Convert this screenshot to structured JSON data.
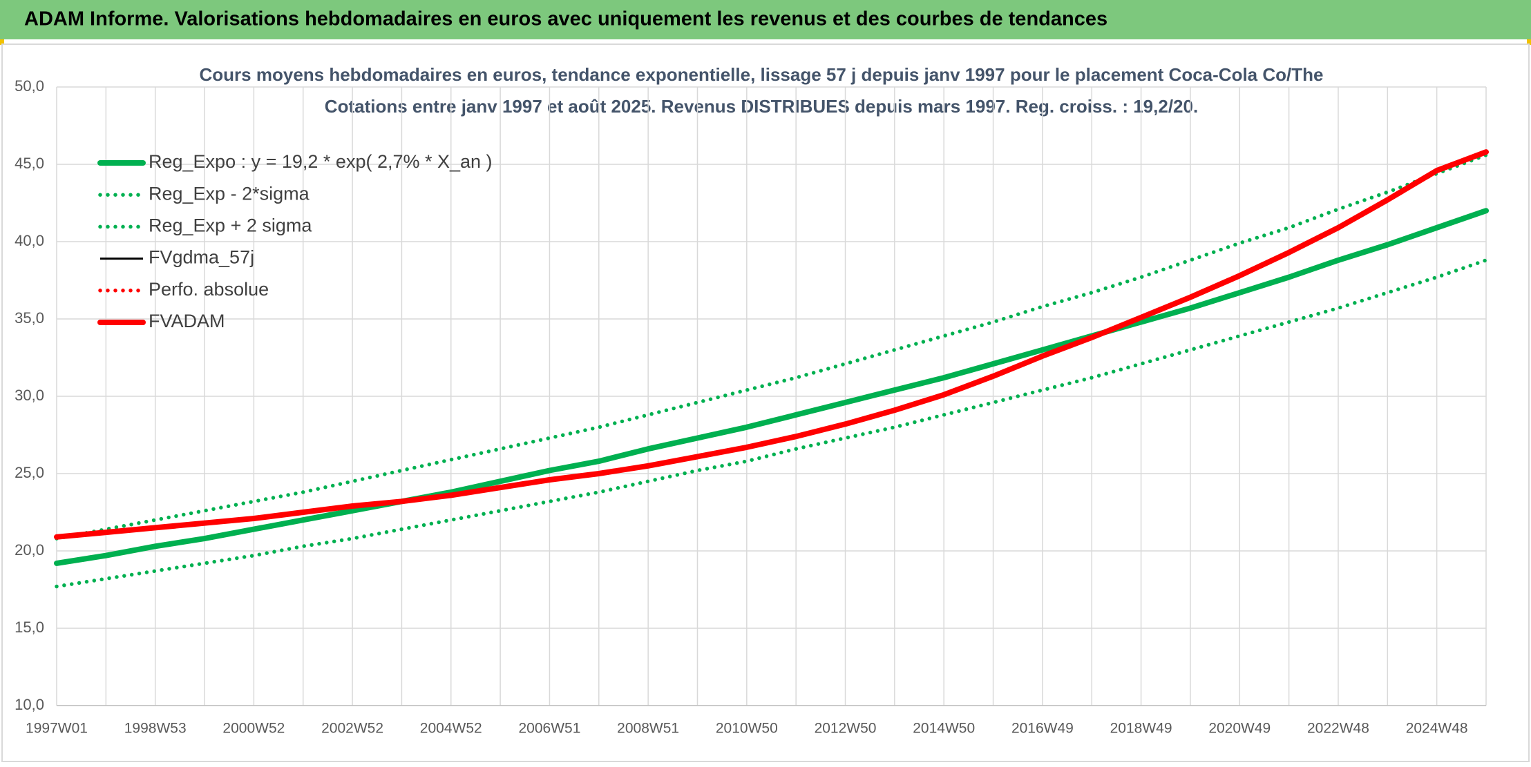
{
  "header": {
    "title": "ADAM Informe. Valorisations hebdomadaires en euros avec uniquement les revenus et des courbes de tendances"
  },
  "chart_data": {
    "type": "line",
    "title": "Cours moyens hebdomadaires en euros, tendance exponentielle, lissage 57 j depuis janv 1997 pour le placement Coca-Cola Co/The",
    "subtitle": "Cotations entre janv 1997 et août 2025. Revenus DISTRIBUES depuis mars 1997. Reg. croiss. : 19,2/20.",
    "categories": [
      "1997W01",
      null,
      "1998W53",
      null,
      "2000W52",
      null,
      "2002W52",
      null,
      "2004W52",
      null,
      "2006W51",
      null,
      "2008W51",
      null,
      "2010W50",
      null,
      "2012W50",
      null,
      "2014W50",
      null,
      "2016W49",
      null,
      "2018W49",
      null,
      "2020W49",
      null,
      "2022W48",
      null,
      "2024W48",
      null
    ],
    "ylim": [
      10,
      50
    ],
    "yticks": [
      {
        "value": 10,
        "label": "10,0"
      },
      {
        "value": 15,
        "label": "15,0"
      },
      {
        "value": 20,
        "label": "20,0"
      },
      {
        "value": 25,
        "label": "25,0"
      },
      {
        "value": 30,
        "label": "30,0"
      },
      {
        "value": 35,
        "label": "35,0"
      },
      {
        "value": 40,
        "label": "40,0"
      },
      {
        "value": 45,
        "label": "45,0"
      },
      {
        "value": 50,
        "label": "50,0"
      }
    ],
    "grid": true,
    "legend": "top-left",
    "series": [
      {
        "name": "Reg_Expo : y = 19,2 * exp( 2,7% *  X_an )",
        "color": "#00b050",
        "line_style": "thick",
        "values": [
          19.2,
          19.7,
          20.3,
          20.8,
          21.4,
          22.0,
          22.6,
          23.2,
          23.8,
          24.5,
          25.2,
          25.8,
          26.6,
          27.3,
          28.0,
          28.8,
          29.6,
          30.4,
          31.2,
          32.1,
          33.0,
          33.9,
          34.8,
          35.7,
          36.7,
          37.7,
          38.8,
          39.8,
          40.9,
          42.0
        ]
      },
      {
        "name": "Reg_Exp - 2*sigma",
        "color": "#00b050",
        "line_style": "dotted",
        "values": [
          17.7,
          18.2,
          18.7,
          19.2,
          19.7,
          20.3,
          20.8,
          21.4,
          22.0,
          22.6,
          23.2,
          23.8,
          24.5,
          25.2,
          25.8,
          26.6,
          27.3,
          28.0,
          28.8,
          29.6,
          30.4,
          31.2,
          32.1,
          33.0,
          33.9,
          34.8,
          35.7,
          36.7,
          37.7,
          38.8
        ]
      },
      {
        "name": "Reg_Exp + 2 sigma",
        "color": "#00b050",
        "line_style": "dotted",
        "values": [
          20.8,
          21.4,
          22.0,
          22.6,
          23.2,
          23.8,
          24.5,
          25.2,
          25.9,
          26.6,
          27.3,
          28.0,
          28.8,
          29.6,
          30.4,
          31.2,
          32.1,
          33.0,
          33.9,
          34.8,
          35.8,
          36.7,
          37.7,
          38.8,
          39.9,
          40.9,
          42.1,
          43.2,
          44.4,
          45.6
        ]
      },
      {
        "name": "FVgdma_57j",
        "color": "#000000",
        "line_style": "thin",
        "values": [
          20.9,
          21.2,
          21.5,
          21.8,
          22.1,
          22.5,
          22.9,
          23.2,
          23.6,
          24.1,
          24.6,
          25.0,
          25.5,
          26.1,
          26.7,
          27.4,
          28.2,
          29.1,
          30.1,
          31.3,
          32.6,
          33.8,
          35.1,
          36.4,
          37.8,
          39.3,
          40.9,
          42.7,
          44.6,
          45.8
        ]
      },
      {
        "name": "Perfo. absolue",
        "color": "#ff0000",
        "line_style": "dotted",
        "values": [
          20.9,
          21.2,
          21.5,
          21.8,
          22.1,
          22.5,
          22.9,
          23.2,
          23.6,
          24.1,
          24.6,
          25.0,
          25.5,
          26.1,
          26.7,
          27.4,
          28.2,
          29.1,
          30.1,
          31.3,
          32.6,
          33.8,
          35.1,
          36.4,
          37.8,
          39.3,
          40.9,
          42.7,
          44.6,
          45.8
        ]
      },
      {
        "name": "FVADAM",
        "color": "#ff0000",
        "line_style": "thick",
        "values": [
          20.9,
          21.2,
          21.5,
          21.8,
          22.1,
          22.5,
          22.9,
          23.2,
          23.6,
          24.1,
          24.6,
          25.0,
          25.5,
          26.1,
          26.7,
          27.4,
          28.2,
          29.1,
          30.1,
          31.3,
          32.6,
          33.8,
          35.1,
          36.4,
          37.8,
          39.3,
          40.9,
          42.7,
          44.6,
          45.8
        ]
      }
    ]
  }
}
